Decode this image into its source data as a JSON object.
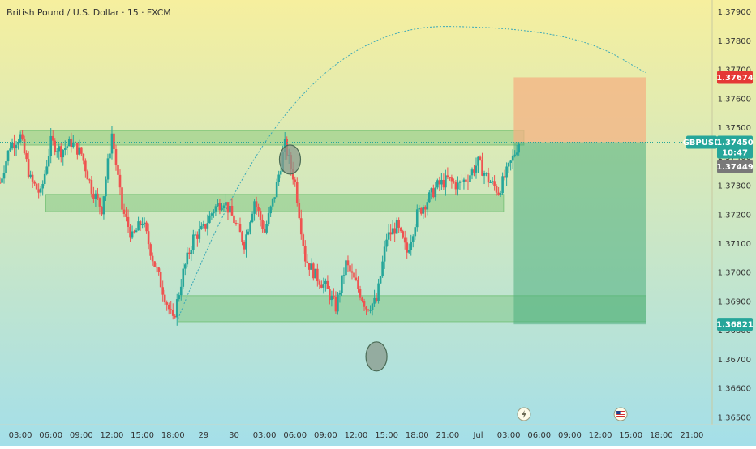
{
  "header": {
    "title": "British Pound / U.S. Dollar · 15 · FXCM"
  },
  "colors": {
    "up": "#26a69a",
    "down": "#ef5350",
    "zone": "#66bb6a",
    "target_zone": "#4caf7d",
    "stop_zone": "#f4b183",
    "price_tag": "#26a69a",
    "red_tag": "#e53935",
    "grey_tag": "#787878",
    "bg_top": "#f6ef9e",
    "bg_bottom": "#a4dfe9"
  },
  "chart_data": {
    "type": "candlestick",
    "symbol": "GBPUSD",
    "y_ticks": [
      "1.37900",
      "1.37800",
      "1.37700",
      "1.37600",
      "1.37500",
      "1.37400",
      "1.37300",
      "1.37200",
      "1.37100",
      "1.37000",
      "1.36900",
      "1.36800",
      "1.36700",
      "1.36600",
      "1.36500"
    ],
    "ylim": [
      1.3648,
      1.3793
    ],
    "x_ticks": [
      "03:00",
      "06:00",
      "09:00",
      "12:00",
      "15:00",
      "18:00",
      "29",
      "30",
      "03:00",
      "06:00",
      "09:00",
      "12:00",
      "15:00",
      "18:00",
      "21:00",
      "Jul",
      "03:00",
      "06:00",
      "09:00",
      "12:00",
      "15:00",
      "18:00",
      "21:00"
    ],
    "xlim": [
      0,
      70
    ],
    "tick_index": [
      2,
      5,
      8,
      11,
      14,
      17,
      20,
      23,
      26,
      29,
      32,
      35,
      38,
      41,
      44,
      47,
      50,
      53,
      56,
      59,
      62,
      65,
      68
    ],
    "last_price": {
      "label": "GBPUSD",
      "value": "1.37450",
      "countdown": "10:47",
      "y": 1.3745
    },
    "bid_price": {
      "value": "1.37449",
      "y": 1.3743
    },
    "take_profit": {
      "value": "1.36821",
      "y": 1.36821
    },
    "stop_loss": {
      "value": "1.37674",
      "y": 1.37674
    },
    "zones": [
      {
        "name": "upper resistance zone",
        "x": [
          2,
          51.5
        ],
        "y": [
          1.3744,
          1.3749
        ]
      },
      {
        "name": "middle support zone",
        "x": [
          4.5,
          49.5
        ],
        "y": [
          1.3721,
          1.3727
        ]
      },
      {
        "name": "lower demand zone",
        "x": [
          17.5,
          63.5
        ],
        "y": [
          1.3683,
          1.3692
        ]
      }
    ],
    "position": {
      "entry": 1.3745,
      "x": [
        50.5,
        63.5
      ]
    },
    "circles": [
      {
        "name": "top-circle",
        "x": 28.5,
        "y": 1.3739
      },
      {
        "name": "bottom-circle",
        "x": 37,
        "y": 1.3671
      }
    ],
    "arc": {
      "start": [
        17.5,
        1.3684
      ],
      "peak": [
        44,
        1.3785
      ],
      "end": [
        63.5,
        1.3769
      ]
    },
    "event_icons": [
      {
        "name": "lightning",
        "x": 51.5
      },
      {
        "name": "us-flag",
        "x": 61
      }
    ],
    "anchors": [
      [
        0,
        1.3731
      ],
      [
        1,
        1.3744
      ],
      [
        2,
        1.3747
      ],
      [
        3,
        1.3732
      ],
      [
        4,
        1.3727
      ],
      [
        5,
        1.3745
      ],
      [
        6,
        1.3742
      ],
      [
        7,
        1.3745
      ],
      [
        8,
        1.3741
      ],
      [
        9,
        1.3729
      ],
      [
        10,
        1.3722
      ],
      [
        11,
        1.3748
      ],
      [
        12,
        1.3722
      ],
      [
        13,
        1.3712
      ],
      [
        14,
        1.3718
      ],
      [
        15,
        1.3705
      ],
      [
        16,
        1.3694
      ],
      [
        17,
        1.3683
      ],
      [
        18,
        1.37
      ],
      [
        19,
        1.3712
      ],
      [
        20,
        1.3715
      ],
      [
        21,
        1.3722
      ],
      [
        22,
        1.3725
      ],
      [
        23,
        1.3718
      ],
      [
        24,
        1.371
      ],
      [
        25,
        1.3725
      ],
      [
        26,
        1.3714
      ],
      [
        27,
        1.3727
      ],
      [
        28,
        1.3744
      ],
      [
        29,
        1.3731
      ],
      [
        30,
        1.3705
      ],
      [
        31,
        1.3699
      ],
      [
        32,
        1.3695
      ],
      [
        33,
        1.3688
      ],
      [
        34,
        1.3703
      ],
      [
        35,
        1.3696
      ],
      [
        36,
        1.3688
      ],
      [
        37,
        1.369
      ],
      [
        38,
        1.3712
      ],
      [
        39,
        1.3716
      ],
      [
        40,
        1.3707
      ],
      [
        41,
        1.372
      ],
      [
        42,
        1.3725
      ],
      [
        43,
        1.373
      ],
      [
        44,
        1.3732
      ],
      [
        45,
        1.373
      ],
      [
        46,
        1.3733
      ],
      [
        47,
        1.3738
      ],
      [
        48,
        1.3732
      ],
      [
        49,
        1.3728
      ],
      [
        50,
        1.3736
      ],
      [
        51,
        1.3745
      ]
    ]
  }
}
